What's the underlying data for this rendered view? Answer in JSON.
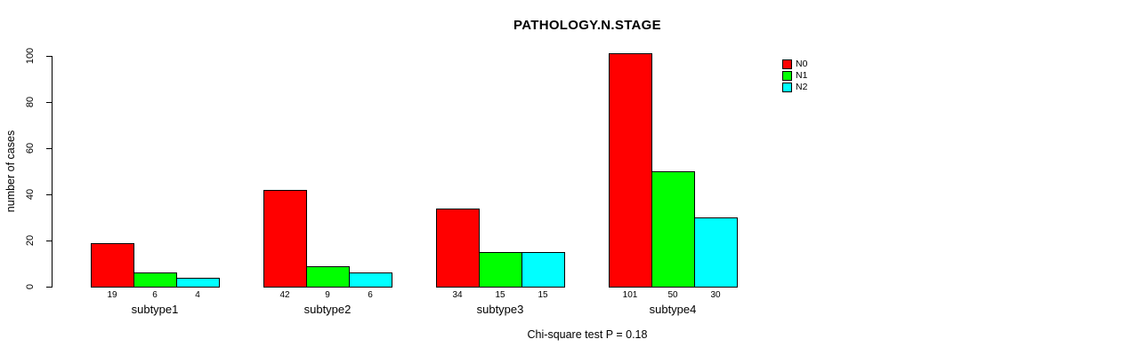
{
  "title": "PATHOLOGY.N.STAGE",
  "footnote": "Chi-square test P = 0.18",
  "chart_data": {
    "type": "bar",
    "title": "PATHOLOGY.N.STAGE",
    "xlabel": "",
    "ylabel": "number of cases",
    "categories": [
      "subtype1",
      "subtype2",
      "subtype3",
      "subtype4"
    ],
    "series": [
      {
        "name": "N0",
        "color": "#FF0000",
        "values": [
          19,
          42,
          34,
          101
        ]
      },
      {
        "name": "N1",
        "color": "#00FF00",
        "values": [
          6,
          9,
          15,
          50
        ]
      },
      {
        "name": "N2",
        "color": "#00FFFF",
        "values": [
          4,
          6,
          15,
          30
        ]
      }
    ],
    "bar_value_labels": [
      [
        "19",
        "6",
        "4"
      ],
      [
        "42",
        "9",
        "6"
      ],
      [
        "34",
        "15",
        "15"
      ],
      [
        "101",
        "50",
        "30"
      ]
    ],
    "ylim": [
      0,
      100
    ],
    "yticks": [
      0,
      20,
      40,
      60,
      80,
      100
    ],
    "grid": false,
    "legend": {
      "position": "top-right",
      "labels": [
        "N0",
        "N1",
        "N2"
      ]
    },
    "annotation": "Chi-square test P = 0.18",
    "colors": {
      "bar_border": "#000000",
      "axis": "#000000",
      "text": "#000000"
    }
  }
}
